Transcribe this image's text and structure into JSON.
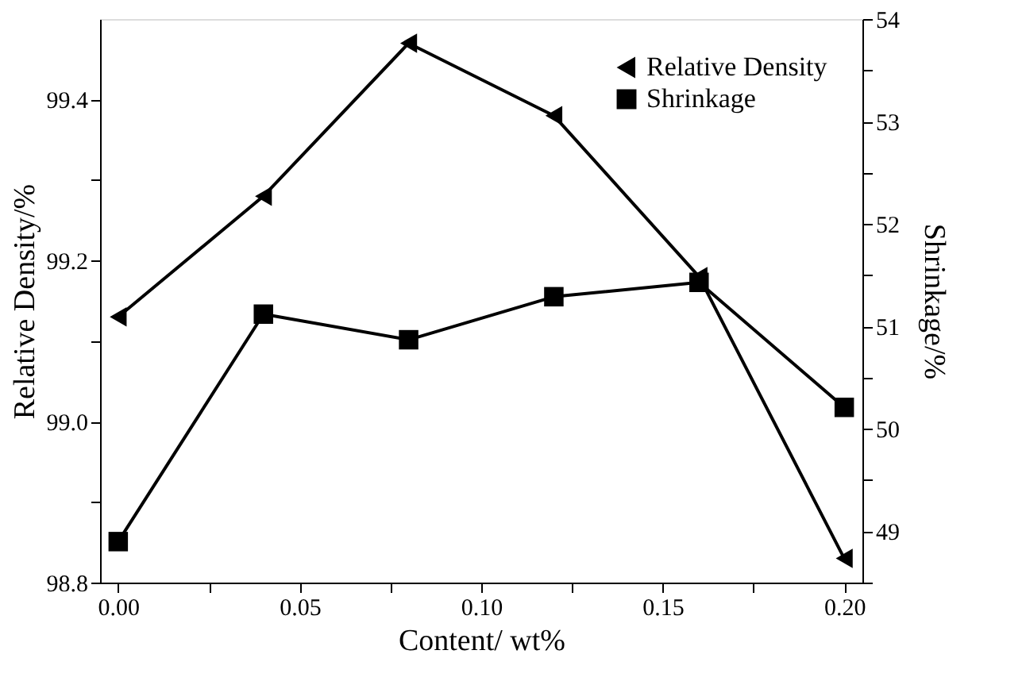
{
  "chart_data": {
    "type": "line",
    "xlabel": "Content/ wt%",
    "ylabel": "Relative Density/%",
    "y2label": "Shrinkage/%",
    "x": [
      0.0,
      0.04,
      0.08,
      0.12,
      0.16,
      0.2
    ],
    "series": [
      {
        "name": "Relative Density",
        "color": "#000000",
        "marker": "triangle-left",
        "values": [
          99.13,
          99.28,
          99.47,
          99.38,
          99.18,
          98.83
        ]
      },
      {
        "name": "Shrinkage",
        "color": "#000000",
        "marker": "square",
        "axis": "y2",
        "values": [
          48.9,
          51.12,
          50.87,
          51.29,
          51.43,
          50.21
        ]
      }
    ],
    "xlim": [
      -0.005,
      0.205
    ],
    "xticks": [
      {
        "value": 0,
        "label": "0.00"
      },
      {
        "value": 0.025,
        "label": null
      },
      {
        "value": 0.05,
        "label": "0.05"
      },
      {
        "value": 0.075,
        "label": null
      },
      {
        "value": 0.1,
        "label": "0.10"
      },
      {
        "value": 0.125,
        "label": null
      },
      {
        "value": 0.15,
        "label": "0.15"
      },
      {
        "value": 0.175,
        "label": null
      },
      {
        "value": 0.2,
        "label": "0.20"
      }
    ],
    "ylim": [
      98.8,
      99.5
    ],
    "yticks": [
      {
        "value": 98.8,
        "label": "98.8"
      },
      {
        "value": 98.9,
        "label": null
      },
      {
        "value": 99.0,
        "label": "99.0"
      },
      {
        "value": 99.1,
        "label": null
      },
      {
        "value": 99.2,
        "label": "99.2"
      },
      {
        "value": 99.3,
        "label": null
      },
      {
        "value": 99.4,
        "label": "99.4"
      }
    ],
    "y2lim": [
      48.5,
      54
    ],
    "y2ticks": [
      {
        "value": 48.5,
        "label": null
      },
      49,
      {
        "value": 49.5,
        "label": null
      },
      50,
      {
        "value": 50.5,
        "label": null
      },
      51,
      {
        "value": 51.5,
        "label": null
      },
      52,
      {
        "value": 52.5,
        "label": null
      },
      53,
      {
        "value": 53.5,
        "label": null
      },
      54
    ],
    "legend": "top right",
    "grid": false,
    "line_style": "solid"
  }
}
